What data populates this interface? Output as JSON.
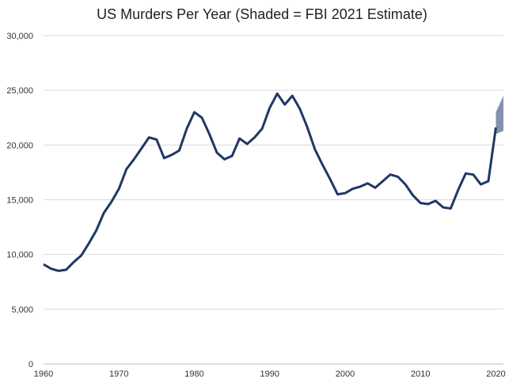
{
  "chart_data": {
    "type": "line",
    "title": "US Murders Per Year (Shaded = FBI 2021 Estimate)",
    "xlabel": "",
    "ylabel": "",
    "xlim": [
      1960,
      2021
    ],
    "ylim": [
      0,
      30000
    ],
    "x_ticks": [
      1960,
      1970,
      1980,
      1990,
      2000,
      2010,
      2020
    ],
    "x_tick_labels": [
      "1960",
      "1970",
      "1980",
      "1990",
      "2000",
      "2010",
      "2020"
    ],
    "y_ticks": [
      0,
      5000,
      10000,
      15000,
      20000,
      25000,
      30000
    ],
    "y_tick_labels": [
      "0",
      "5,000",
      "10,000",
      "15,000",
      "20,000",
      "25,000",
      "30,000"
    ],
    "grid": "horizontal",
    "legend": "none",
    "colors": {
      "line": "#1f3864",
      "shade": "#8591ad",
      "grid": "#d9d9d9"
    },
    "series": [
      {
        "x": [
          1960,
          1961,
          1962,
          1963,
          1964,
          1965,
          1966,
          1967,
          1968,
          1969,
          1970,
          1971,
          1972,
          1973,
          1974,
          1975,
          1976,
          1977,
          1978,
          1979,
          1980,
          1981,
          1982,
          1983,
          1984,
          1985,
          1986,
          1987,
          1988,
          1989,
          1990,
          1991,
          1992,
          1993,
          1994,
          1995,
          1996,
          1997,
          1998,
          1999,
          2000,
          2001,
          2002,
          2003,
          2004,
          2005,
          2006,
          2007,
          2008,
          2009,
          2010,
          2011,
          2012,
          2013,
          2014,
          2015,
          2016,
          2017,
          2018,
          2019,
          2020
        ],
        "values": [
          9100,
          8700,
          8500,
          8600,
          9300,
          9900,
          11000,
          12200,
          13800,
          14800,
          16000,
          17800,
          18700,
          19700,
          20700,
          20500,
          18800,
          19100,
          19500,
          21500,
          23000,
          22500,
          21000,
          19300,
          18700,
          19000,
          20600,
          20100,
          20700,
          21500,
          23400,
          24700,
          23700,
          24500,
          23300,
          21600,
          19600,
          18200,
          16900,
          15500,
          15600,
          16000,
          16200,
          16500,
          16100,
          16700,
          17300,
          17100,
          16400,
          15400,
          14700,
          14600,
          14900,
          14300,
          14200,
          15900,
          17400,
          17300,
          16400,
          16700,
          21600
        ]
      }
    ],
    "estimate_band": {
      "x": [
        2020,
        2021
      ],
      "lower": [
        21000,
        21300
      ],
      "upper": [
        23000,
        24500
      ]
    }
  }
}
